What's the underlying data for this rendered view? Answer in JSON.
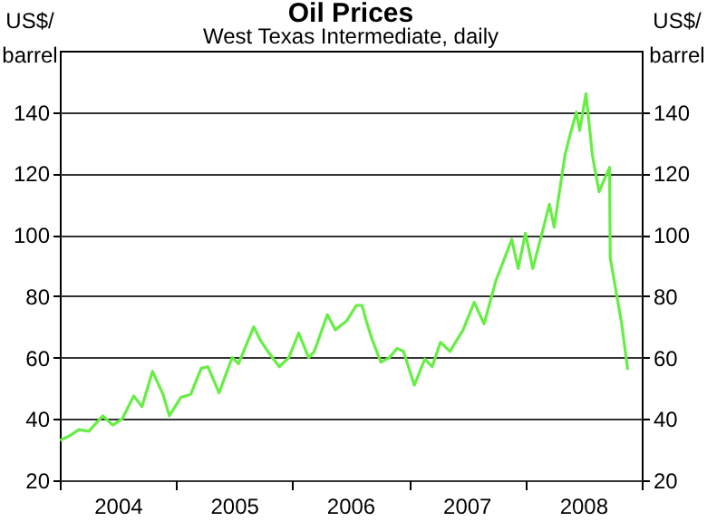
{
  "chart_data": {
    "type": "line",
    "title": "Oil Prices",
    "subtitle": "West Texas Intermediate, daily",
    "ylabel": "US$/ barrel",
    "y2label": "US$/ barrel",
    "x": [
      "2004-01-02",
      "2004-02-01",
      "2004-03-01",
      "2004-04-01",
      "2004-05-15",
      "2004-06-15",
      "2004-07-15",
      "2004-08-20",
      "2004-09-15",
      "2004-10-18",
      "2004-11-20",
      "2004-12-10",
      "2005-01-15",
      "2005-02-15",
      "2005-03-20",
      "2005-04-10",
      "2005-05-15",
      "2005-06-25",
      "2005-07-15",
      "2005-09-01",
      "2005-09-20",
      "2005-10-15",
      "2005-11-20",
      "2005-12-20",
      "2006-01-20",
      "2006-02-20",
      "2006-03-10",
      "2006-04-20",
      "2006-05-15",
      "2006-06-20",
      "2006-07-20",
      "2006-08-07",
      "2006-08-20",
      "2006-09-07",
      "2006-10-05",
      "2006-11-01",
      "2006-11-25",
      "2006-12-15",
      "2007-01-18",
      "2007-02-20",
      "2007-03-15",
      "2007-04-10",
      "2007-05-10",
      "2007-06-20",
      "2007-07-25",
      "2007-08-25",
      "2007-10-01",
      "2007-11-20",
      "2007-12-10",
      "2008-01-02",
      "2008-01-25",
      "2008-02-28",
      "2008-03-17",
      "2008-04-01",
      "2008-05-05",
      "2008-05-22",
      "2008-06-10",
      "2008-06-20",
      "2008-07-10",
      "2008-07-30",
      "2008-08-20",
      "2008-09-22",
      "2008-09-24",
      "2008-10-10",
      "2008-10-30",
      "2008-11-18"
    ],
    "series": [
      {
        "color": "#66ee44",
        "values": [
          33,
          34.5,
          36.5,
          36,
          41,
          38,
          40,
          47.5,
          44,
          55.5,
          48,
          41,
          47,
          48,
          56.5,
          57,
          48.5,
          60,
          58,
          70,
          66,
          62,
          57,
          60,
          68,
          60,
          62,
          74,
          69,
          72,
          77,
          77,
          72,
          66,
          58.5,
          60,
          63,
          62,
          51,
          59.5,
          57,
          65,
          62,
          69,
          78,
          71,
          85,
          98.5,
          89,
          100.5,
          89,
          102.5,
          110,
          102.5,
          126,
          133,
          140,
          134,
          146,
          126,
          114,
          122,
          92.5,
          83,
          71,
          56
        ]
      }
    ],
    "xlim": [
      "2004-01-01",
      "2009-01-01"
    ],
    "xticks": [
      {
        "value": "2004-01-01",
        "label": null
      },
      {
        "value": "2004-07-01",
        "label": "2004"
      },
      {
        "value": "2005-01-01",
        "label": null
      },
      {
        "value": "2005-07-01",
        "label": "2005"
      },
      {
        "value": "2006-01-01",
        "label": null
      },
      {
        "value": "2006-07-01",
        "label": "2006"
      },
      {
        "value": "2007-01-01",
        "label": null
      },
      {
        "value": "2007-07-01",
        "label": "2007"
      },
      {
        "value": "2008-01-01",
        "label": null
      },
      {
        "value": "2008-07-01",
        "label": "2008"
      },
      {
        "value": "2009-01-01",
        "label": null
      }
    ],
    "ylim": [
      20,
      160
    ],
    "yticks": [
      20,
      40,
      60,
      80,
      100,
      120,
      140
    ],
    "y2lim": [
      20,
      160
    ],
    "y2ticks": [
      20,
      40,
      60,
      80,
      100,
      120,
      140
    ],
    "grid": "y"
  }
}
